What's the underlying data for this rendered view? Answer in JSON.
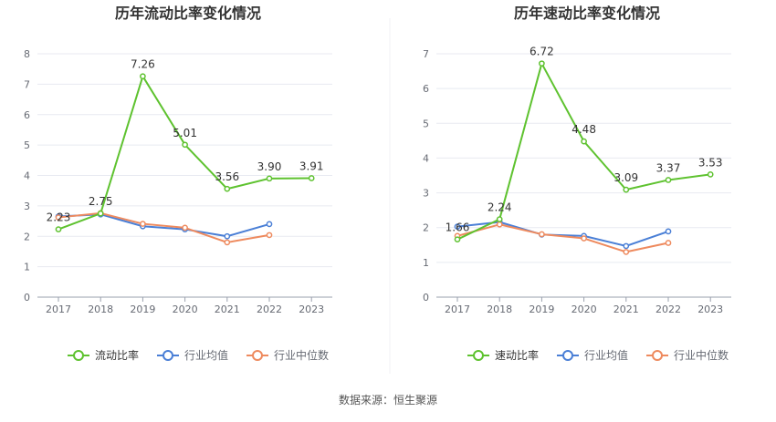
{
  "footer": {
    "source": "数据来源：恒生聚源"
  },
  "colors": {
    "main": "#5ec22f",
    "avg": "#4a7fd6",
    "median": "#ee8a5e",
    "grid": "#e8eaf1",
    "axis": "#9aa0ad",
    "text": "#666a73"
  },
  "chart_data": [
    {
      "type": "line",
      "title": "历年流动比率变化情况",
      "categories": [
        "2017",
        "2018",
        "2019",
        "2020",
        "2021",
        "2022",
        "2023"
      ],
      "ylim": [
        0,
        8
      ],
      "yticks": [
        0,
        1,
        2,
        3,
        4,
        5,
        6,
        7,
        8
      ],
      "grid": true,
      "legend": "bottom",
      "series": [
        {
          "name": "流动比率",
          "values": [
            2.23,
            2.75,
            7.26,
            5.01,
            3.56,
            3.9,
            3.91
          ],
          "labels": [
            "2.23",
            "2.75",
            "7.26",
            "5.01",
            "3.56",
            "3.90",
            "3.91"
          ]
        },
        {
          "name": "行业均值",
          "values": [
            2.65,
            2.72,
            2.33,
            2.23,
            2.0,
            2.4,
            null
          ]
        },
        {
          "name": "行业中位数",
          "values": [
            2.62,
            2.76,
            2.41,
            2.28,
            1.8,
            2.04,
            null
          ]
        }
      ]
    },
    {
      "type": "line",
      "title": "历年速动比率变化情况",
      "categories": [
        "2017",
        "2018",
        "2019",
        "2020",
        "2021",
        "2022",
        "2023"
      ],
      "ylim": [
        0,
        7
      ],
      "yticks": [
        0,
        1,
        2,
        3,
        4,
        5,
        6,
        7
      ],
      "grid": true,
      "legend": "bottom",
      "series": [
        {
          "name": "速动比率",
          "values": [
            1.66,
            2.24,
            6.72,
            4.48,
            3.09,
            3.37,
            3.53
          ],
          "labels": [
            "1.66",
            "2.24",
            "6.72",
            "4.48",
            "3.09",
            "3.37",
            "3.53"
          ]
        },
        {
          "name": "行业均值",
          "values": [
            2.03,
            2.16,
            1.8,
            1.76,
            1.47,
            1.89,
            null
          ]
        },
        {
          "name": "行业中位数",
          "values": [
            1.76,
            2.09,
            1.81,
            1.69,
            1.3,
            1.56,
            null
          ]
        }
      ]
    }
  ]
}
